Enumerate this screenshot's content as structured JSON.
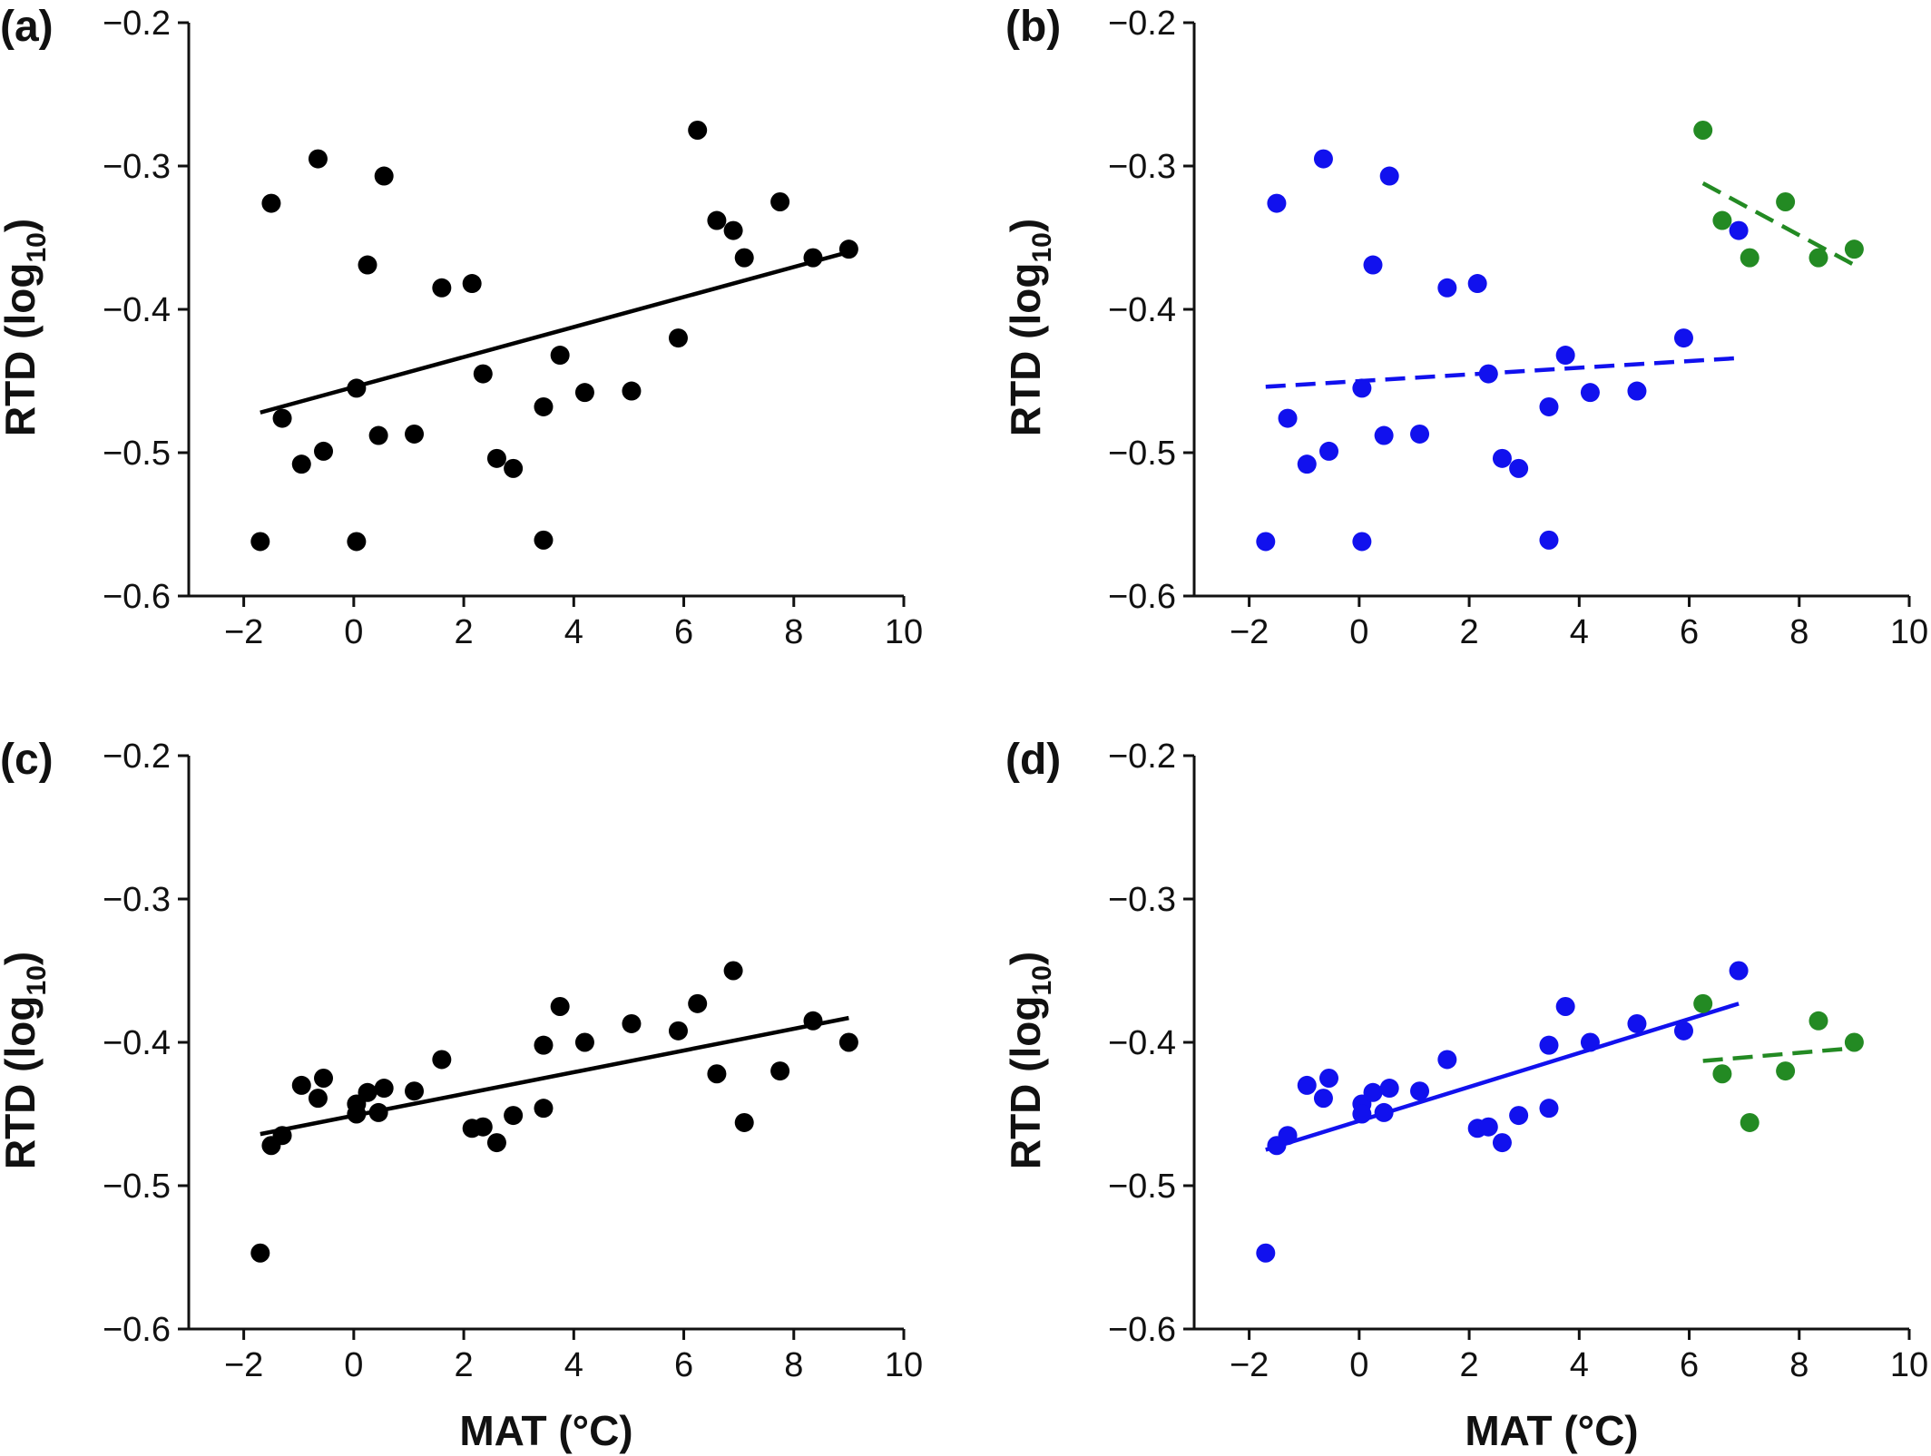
{
  "colors": {
    "all": "#000000",
    "group1": "#1111ee",
    "group2": "#238a23"
  },
  "chart_data": [
    {
      "type": "scatter",
      "panel_label": "(a)",
      "xlabel": "",
      "ylabel": "RTD (log10)",
      "xlim": [
        -3,
        10
      ],
      "ylim": [
        -0.6,
        -0.2
      ],
      "xticks": [
        -2,
        0,
        2,
        4,
        6,
        8,
        10
      ],
      "xtick_labels": [
        "−2",
        "0",
        "2",
        "4",
        "6",
        "8",
        "10"
      ],
      "yticks": [
        -0.6,
        -0.5,
        -0.4,
        -0.3,
        -0.2
      ],
      "ytick_labels": [
        "−0.6",
        "−0.5",
        "−0.4",
        "−0.3",
        "−0.2"
      ],
      "series": [
        {
          "color": "#000000",
          "points": [
            [
              -1.7,
              -0.562
            ],
            [
              -1.5,
              -0.326
            ],
            [
              -1.3,
              -0.476
            ],
            [
              -0.95,
              -0.508
            ],
            [
              -0.65,
              -0.295
            ],
            [
              -0.55,
              -0.499
            ],
            [
              0.05,
              -0.455
            ],
            [
              0.05,
              -0.562
            ],
            [
              0.25,
              -0.369
            ],
            [
              0.45,
              -0.488
            ],
            [
              0.55,
              -0.307
            ],
            [
              1.1,
              -0.487
            ],
            [
              1.6,
              -0.385
            ],
            [
              2.15,
              -0.382
            ],
            [
              2.35,
              -0.445
            ],
            [
              2.6,
              -0.504
            ],
            [
              2.9,
              -0.511
            ],
            [
              3.45,
              -0.468
            ],
            [
              3.45,
              -0.561
            ],
            [
              3.75,
              -0.432
            ],
            [
              4.2,
              -0.458
            ],
            [
              5.05,
              -0.457
            ],
            [
              5.9,
              -0.42
            ],
            [
              6.25,
              -0.275
            ],
            [
              6.6,
              -0.338
            ],
            [
              6.9,
              -0.345
            ],
            [
              7.1,
              -0.364
            ],
            [
              7.75,
              -0.325
            ],
            [
              8.35,
              -0.364
            ],
            [
              9.0,
              -0.358
            ]
          ],
          "fit": {
            "x": [
              -1.7,
              9.0
            ],
            "y": [
              -0.472,
              -0.36
            ],
            "style": "solid"
          }
        }
      ]
    },
    {
      "type": "scatter",
      "panel_label": "(b)",
      "xlabel": "",
      "ylabel": "RTD (log10)",
      "xlim": [
        -3,
        10
      ],
      "ylim": [
        -0.6,
        -0.2
      ],
      "xticks": [
        -2,
        0,
        2,
        4,
        6,
        8,
        10
      ],
      "xtick_labels": [
        "−2",
        "0",
        "2",
        "4",
        "6",
        "8",
        "10"
      ],
      "yticks": [
        -0.6,
        -0.5,
        -0.4,
        -0.3,
        -0.2
      ],
      "ytick_labels": [
        "−0.6",
        "−0.5",
        "−0.4",
        "−0.3",
        "−0.2"
      ],
      "series": [
        {
          "color": "#1111ee",
          "points": [
            [
              -1.7,
              -0.562
            ],
            [
              -1.5,
              -0.326
            ],
            [
              -1.3,
              -0.476
            ],
            [
              -0.95,
              -0.508
            ],
            [
              -0.65,
              -0.295
            ],
            [
              -0.55,
              -0.499
            ],
            [
              0.05,
              -0.455
            ],
            [
              0.05,
              -0.562
            ],
            [
              0.25,
              -0.369
            ],
            [
              0.45,
              -0.488
            ],
            [
              0.55,
              -0.307
            ],
            [
              1.1,
              -0.487
            ],
            [
              1.6,
              -0.385
            ],
            [
              2.15,
              -0.382
            ],
            [
              2.35,
              -0.445
            ],
            [
              2.6,
              -0.504
            ],
            [
              2.9,
              -0.511
            ],
            [
              3.45,
              -0.468
            ],
            [
              3.45,
              -0.561
            ],
            [
              3.75,
              -0.432
            ],
            [
              4.2,
              -0.458
            ],
            [
              5.05,
              -0.457
            ],
            [
              5.9,
              -0.42
            ],
            [
              6.9,
              -0.345
            ]
          ],
          "fit": {
            "x": [
              -1.7,
              6.9
            ],
            "y": [
              -0.454,
              -0.434
            ],
            "style": "dashed"
          }
        },
        {
          "color": "#238a23",
          "points": [
            [
              6.25,
              -0.275
            ],
            [
              6.6,
              -0.338
            ],
            [
              7.1,
              -0.364
            ],
            [
              7.75,
              -0.325
            ],
            [
              8.35,
              -0.364
            ],
            [
              9.0,
              -0.358
            ]
          ],
          "fit": {
            "x": [
              6.25,
              9.0
            ],
            "y": [
              -0.312,
              -0.369
            ],
            "style": "dashed"
          }
        }
      ]
    },
    {
      "type": "scatter",
      "panel_label": "(c)",
      "xlabel": "MAT (°C)",
      "ylabel": "RTD (log10)",
      "xlim": [
        -3,
        10
      ],
      "ylim": [
        -0.6,
        -0.2
      ],
      "xticks": [
        -2,
        0,
        2,
        4,
        6,
        8,
        10
      ],
      "xtick_labels": [
        "−2",
        "0",
        "2",
        "4",
        "6",
        "8",
        "10"
      ],
      "yticks": [
        -0.6,
        -0.5,
        -0.4,
        -0.3,
        -0.2
      ],
      "ytick_labels": [
        "−0.6",
        "−0.5",
        "−0.4",
        "−0.3",
        "−0.2"
      ],
      "series": [
        {
          "color": "#000000",
          "points": [
            [
              -1.7,
              -0.547
            ],
            [
              -1.5,
              -0.472
            ],
            [
              -1.3,
              -0.465
            ],
            [
              -0.95,
              -0.43
            ],
            [
              -0.65,
              -0.439
            ],
            [
              -0.55,
              -0.425
            ],
            [
              0.05,
              -0.443
            ],
            [
              0.05,
              -0.45
            ],
            [
              0.25,
              -0.435
            ],
            [
              0.45,
              -0.449
            ],
            [
              0.55,
              -0.432
            ],
            [
              1.1,
              -0.434
            ],
            [
              1.6,
              -0.412
            ],
            [
              2.15,
              -0.46
            ],
            [
              2.35,
              -0.459
            ],
            [
              2.6,
              -0.47
            ],
            [
              2.9,
              -0.451
            ],
            [
              3.45,
              -0.402
            ],
            [
              3.45,
              -0.446
            ],
            [
              3.75,
              -0.375
            ],
            [
              4.2,
              -0.4
            ],
            [
              5.05,
              -0.387
            ],
            [
              5.9,
              -0.392
            ],
            [
              6.25,
              -0.373
            ],
            [
              6.6,
              -0.422
            ],
            [
              6.9,
              -0.35
            ],
            [
              7.1,
              -0.456
            ],
            [
              7.75,
              -0.42
            ],
            [
              8.35,
              -0.385
            ],
            [
              9.0,
              -0.4
            ]
          ],
          "fit": {
            "x": [
              -1.7,
              9.0
            ],
            "y": [
              -0.464,
              -0.383
            ],
            "style": "solid"
          }
        }
      ]
    },
    {
      "type": "scatter",
      "panel_label": "(d)",
      "xlabel": "MAT (°C)",
      "ylabel": "RTD (log10)",
      "xlim": [
        -3,
        10
      ],
      "ylim": [
        -0.6,
        -0.2
      ],
      "xticks": [
        -2,
        0,
        2,
        4,
        6,
        8,
        10
      ],
      "xtick_labels": [
        "−2",
        "0",
        "2",
        "4",
        "6",
        "8",
        "10"
      ],
      "yticks": [
        -0.6,
        -0.5,
        -0.4,
        -0.3,
        -0.2
      ],
      "ytick_labels": [
        "−0.6",
        "−0.5",
        "−0.4",
        "−0.3",
        "−0.2"
      ],
      "series": [
        {
          "color": "#1111ee",
          "points": [
            [
              -1.7,
              -0.547
            ],
            [
              -1.5,
              -0.472
            ],
            [
              -1.3,
              -0.465
            ],
            [
              -0.95,
              -0.43
            ],
            [
              -0.65,
              -0.439
            ],
            [
              -0.55,
              -0.425
            ],
            [
              0.05,
              -0.443
            ],
            [
              0.05,
              -0.45
            ],
            [
              0.25,
              -0.435
            ],
            [
              0.45,
              -0.449
            ],
            [
              0.55,
              -0.432
            ],
            [
              1.1,
              -0.434
            ],
            [
              1.6,
              -0.412
            ],
            [
              2.15,
              -0.46
            ],
            [
              2.35,
              -0.459
            ],
            [
              2.6,
              -0.47
            ],
            [
              2.9,
              -0.451
            ],
            [
              3.45,
              -0.402
            ],
            [
              3.45,
              -0.446
            ],
            [
              3.75,
              -0.375
            ],
            [
              4.2,
              -0.4
            ],
            [
              5.05,
              -0.387
            ],
            [
              5.9,
              -0.392
            ],
            [
              6.9,
              -0.35
            ]
          ],
          "fit": {
            "x": [
              -1.7,
              6.9
            ],
            "y": [
              -0.475,
              -0.373
            ],
            "style": "solid"
          }
        },
        {
          "color": "#238a23",
          "points": [
            [
              6.25,
              -0.373
            ],
            [
              6.6,
              -0.422
            ],
            [
              7.1,
              -0.456
            ],
            [
              7.75,
              -0.42
            ],
            [
              8.35,
              -0.385
            ],
            [
              9.0,
              -0.4
            ]
          ],
          "fit": {
            "x": [
              6.25,
              9.0
            ],
            "y": [
              -0.413,
              -0.404
            ],
            "style": "dashed"
          }
        }
      ]
    }
  ]
}
